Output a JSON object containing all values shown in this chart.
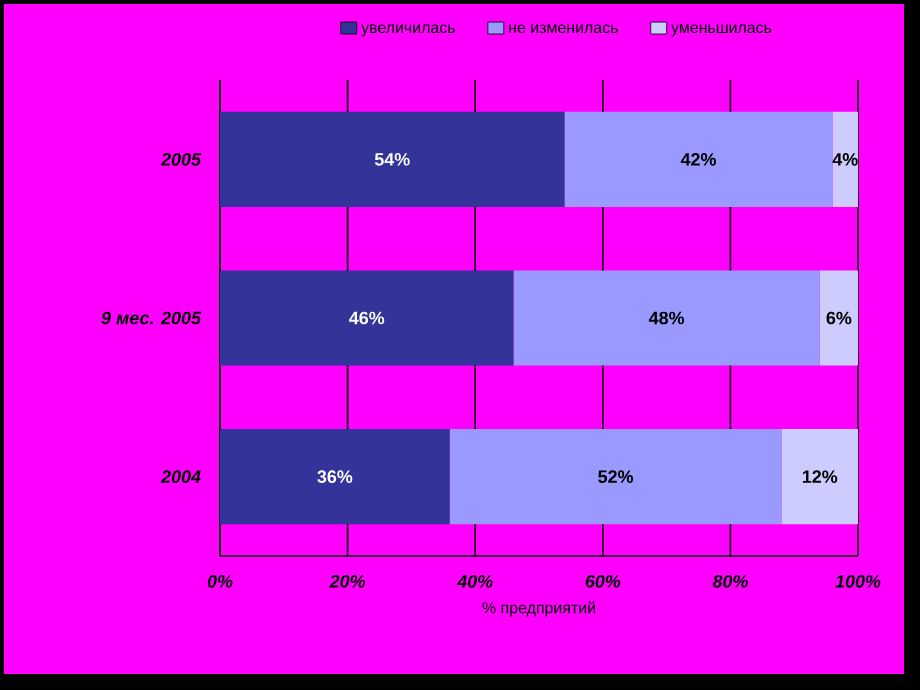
{
  "chart_data": {
    "type": "bar",
    "orientation": "horizontal",
    "stacked": true,
    "xlabel": "% предприятий",
    "categories": [
      "2005",
      "9 мес. 2005",
      "2004"
    ],
    "series": [
      {
        "name": "увеличилась",
        "color": "#333399",
        "values": [
          54,
          46,
          36
        ],
        "value_labels": [
          "54%",
          "46%",
          "36%"
        ]
      },
      {
        "name": "не изменилась",
        "color": "#9999ff",
        "values": [
          42,
          48,
          52
        ],
        "value_labels": [
          "42%",
          "48%",
          "52%"
        ]
      },
      {
        "name": "уменьшилась",
        "color": "#ccccff",
        "values": [
          4,
          6,
          12
        ],
        "value_labels": [
          "4%",
          "6%",
          "12%"
        ]
      }
    ],
    "xlim": [
      0,
      100
    ],
    "xticks": [
      {
        "value": 0,
        "label": "0%"
      },
      {
        "value": 20,
        "label": "20%"
      },
      {
        "value": 40,
        "label": "40%"
      },
      {
        "value": 60,
        "label": "60%"
      },
      {
        "value": 80,
        "label": "80%"
      },
      {
        "value": 100,
        "label": "100%"
      }
    ],
    "grid": "x",
    "legend": "top"
  }
}
